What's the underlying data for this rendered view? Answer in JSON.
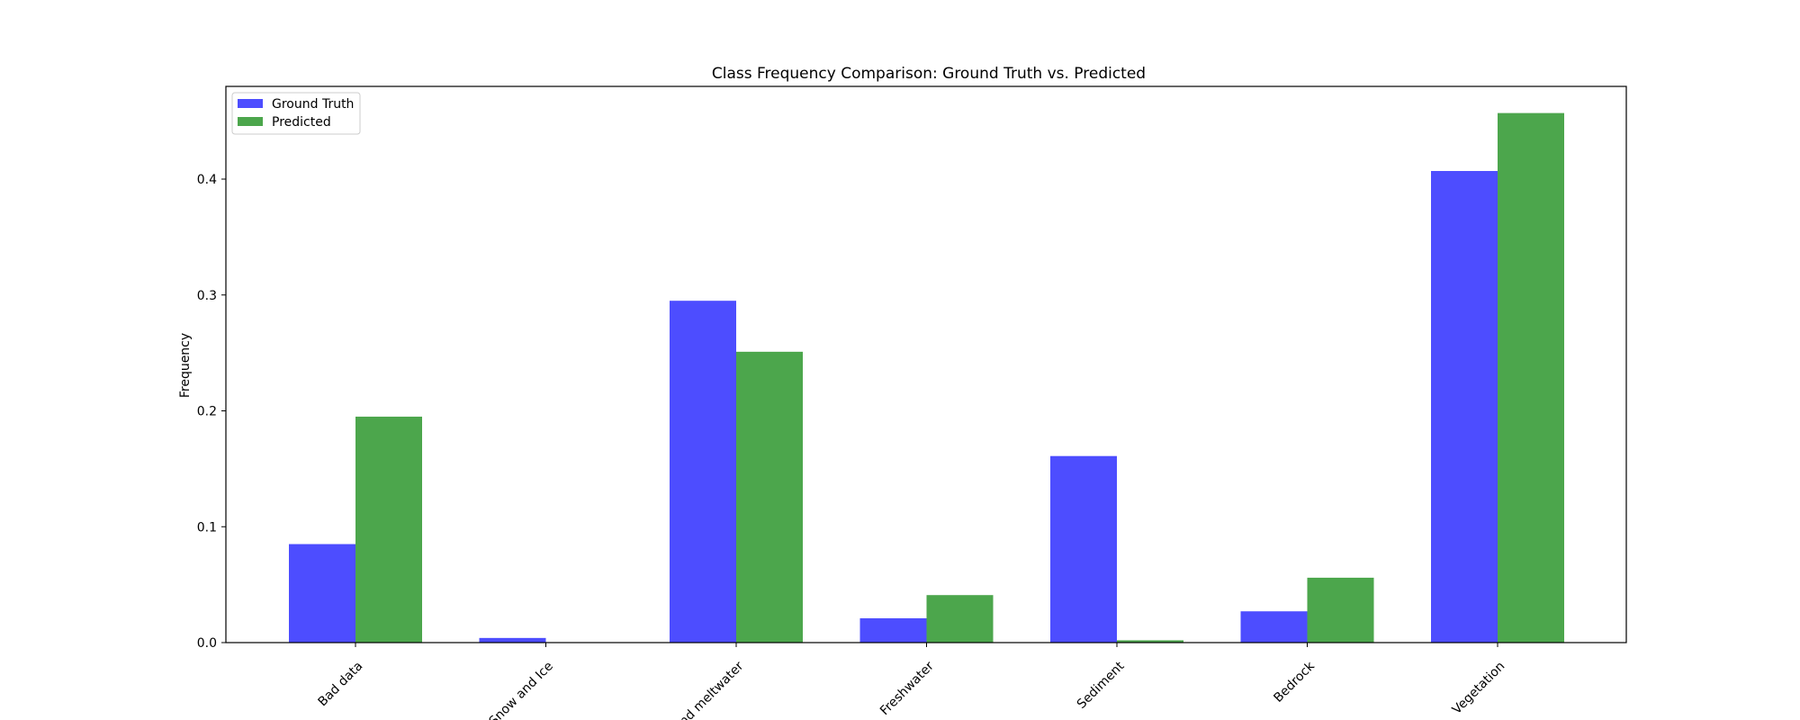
{
  "chart_data": {
    "type": "bar",
    "title": "Class Frequency Comparison: Ground Truth vs. Predicted",
    "xlabel": "",
    "ylabel": "Frequency",
    "ylim": [
      0,
      0.48
    ],
    "yticks": [
      0.0,
      0.1,
      0.2,
      0.3,
      0.4
    ],
    "ytick_labels": [
      "0.0",
      "0.1",
      "0.2",
      "0.3",
      "0.4"
    ],
    "categories": [
      "Bad data",
      "Snow and Ice",
      "and meltwater",
      "Freshwater",
      "Sediment",
      "Bedrock",
      "Vegetation"
    ],
    "series": [
      {
        "name": "Ground Truth",
        "color": "#4d4dff",
        "values": [
          0.085,
          0.004,
          0.295,
          0.021,
          0.161,
          0.027,
          0.407
        ]
      },
      {
        "name": "Predicted",
        "color": "#4ca64c",
        "values": [
          0.195,
          0.0,
          0.251,
          0.041,
          0.002,
          0.056,
          0.457
        ]
      }
    ],
    "legend": "top-left",
    "grid": false
  }
}
